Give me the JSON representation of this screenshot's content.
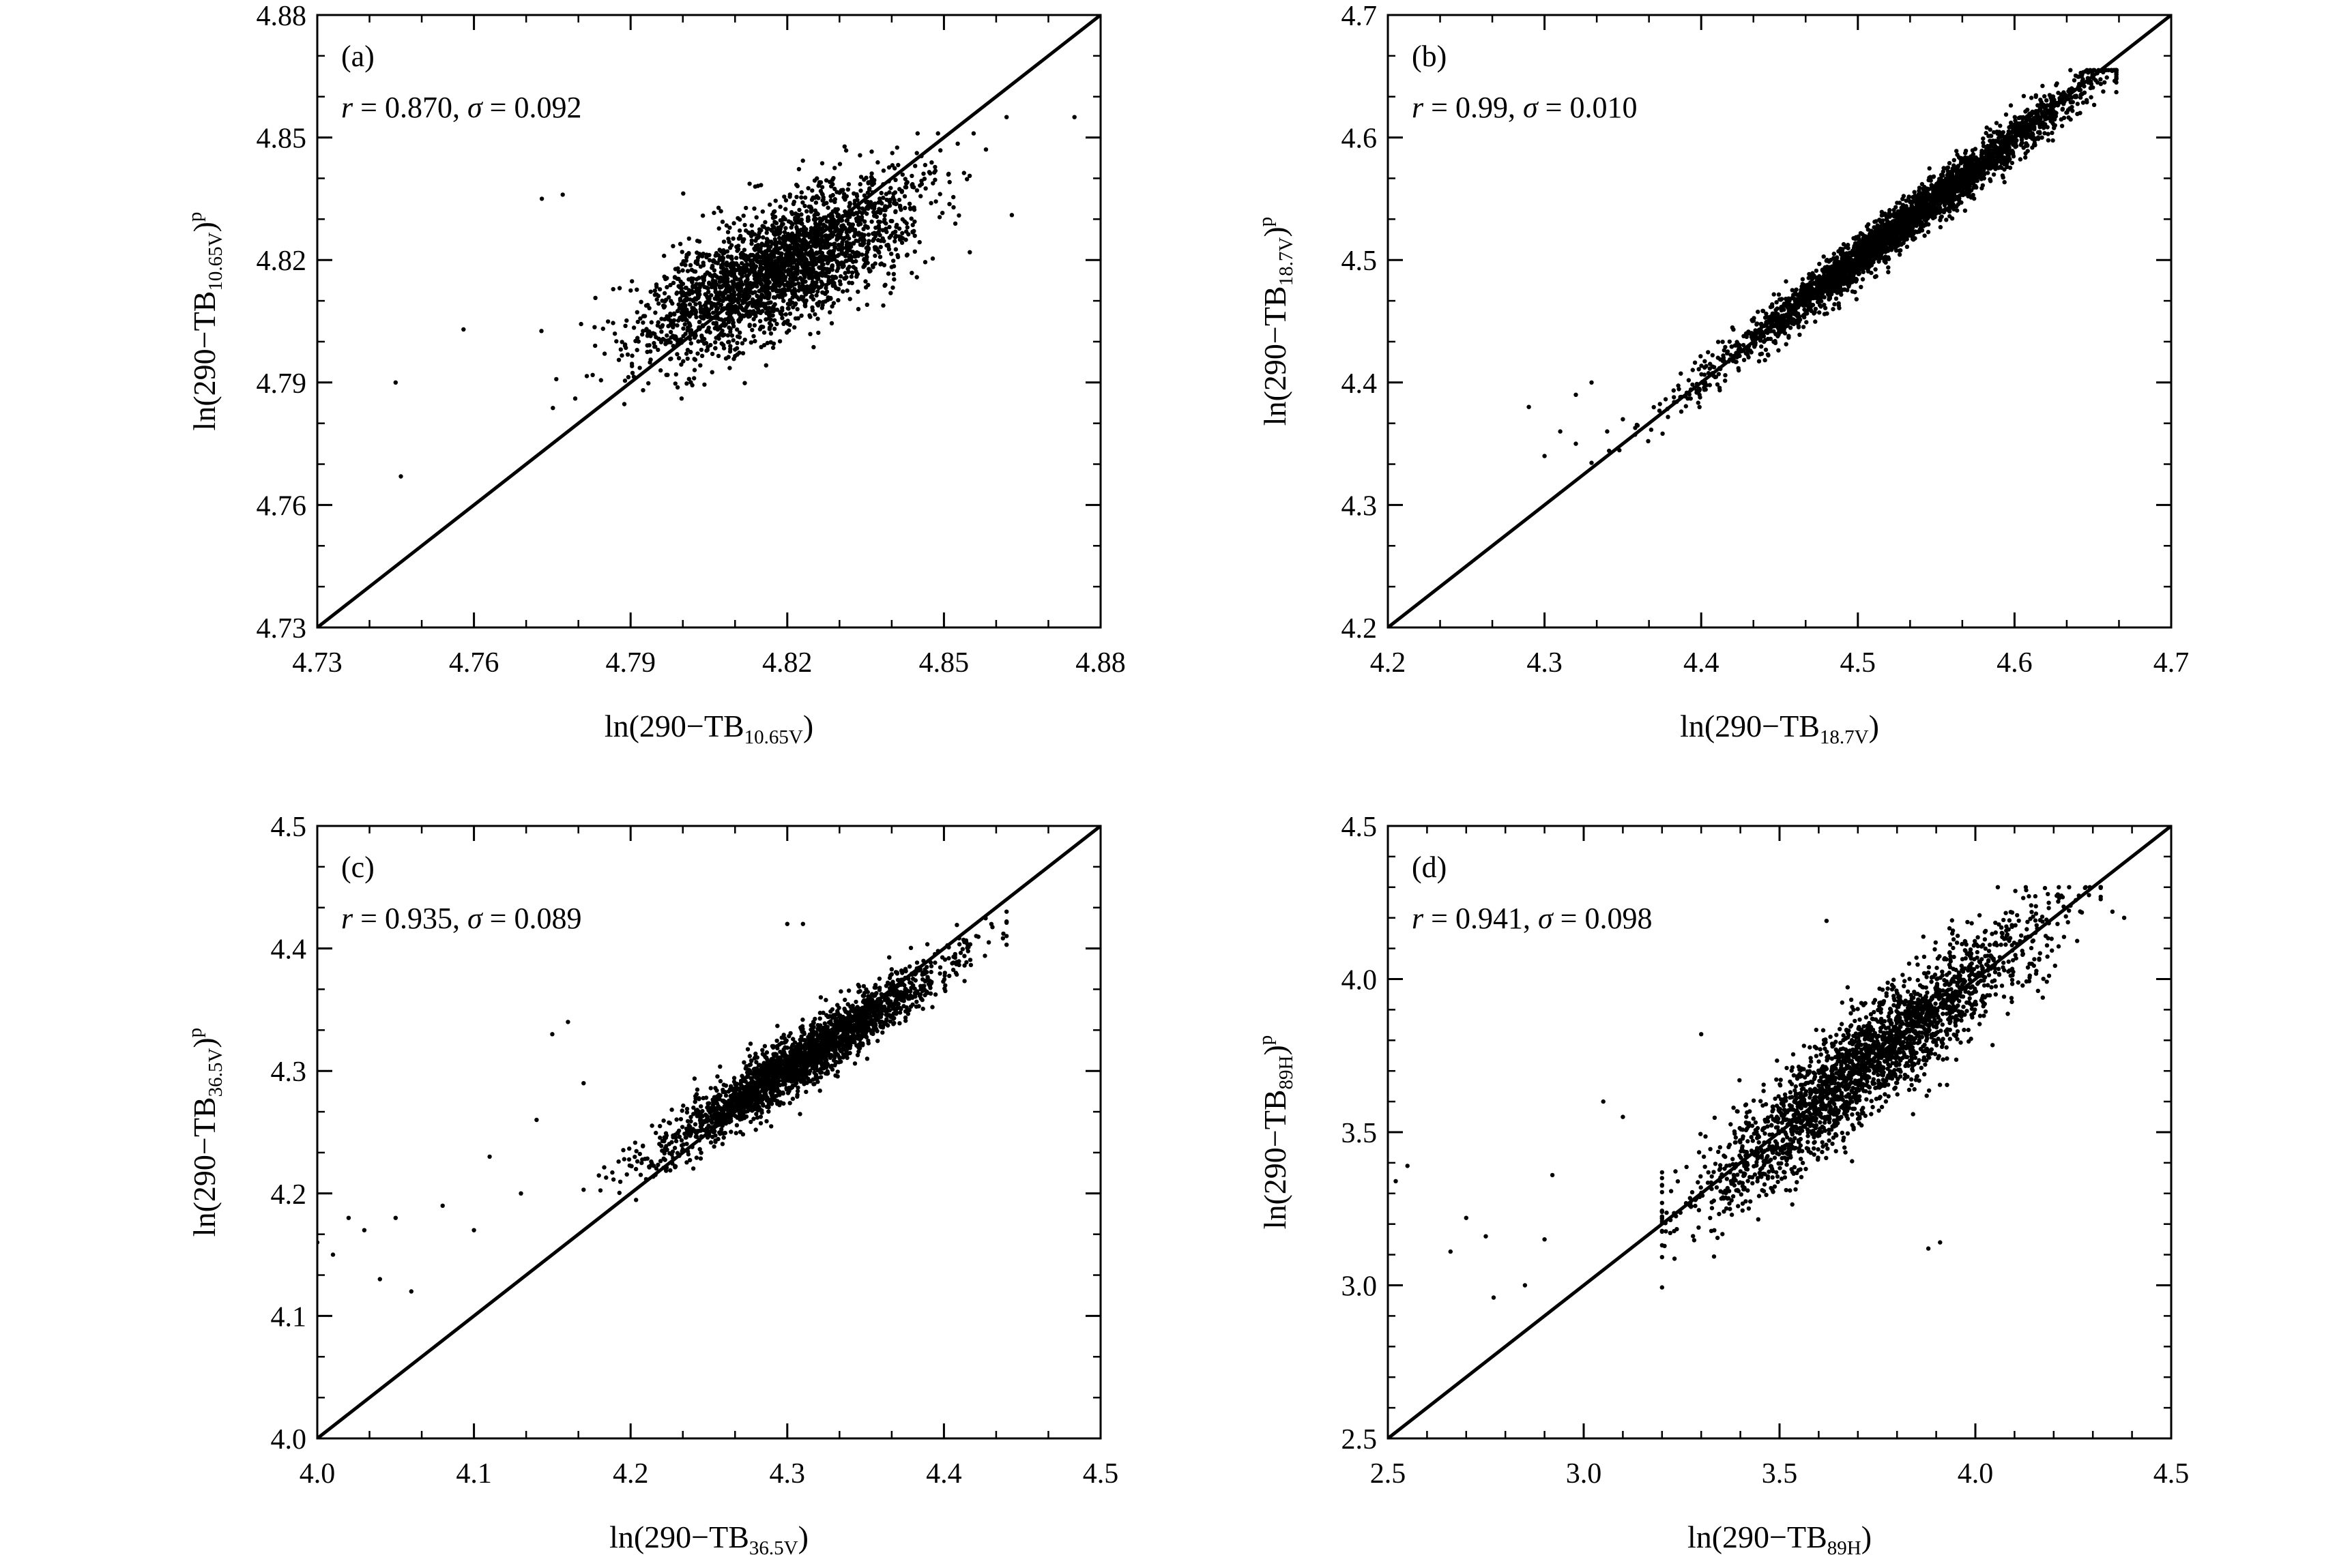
{
  "chart_data": [
    {
      "type": "scatter",
      "panel_label": "(a)",
      "stats": {
        "r_sym": "r",
        "r_eq": " = 0.870, ",
        "s_sym": "σ",
        "s_eq": " = 0.092"
      },
      "xlabel": {
        "pre": "ln(290−TB",
        "sub": "10.65V",
        "post": ")",
        "sup": ""
      },
      "ylabel": {
        "pre": "ln(290−TB",
        "sub": "10.65V",
        "post": ")",
        "sup": "p"
      },
      "xlim": [
        4.73,
        4.88
      ],
      "ylim": [
        4.73,
        4.88
      ],
      "xticks": [
        "4.73",
        "4.76",
        "4.79",
        "4.82",
        "4.85",
        "4.88"
      ],
      "yticks": [
        "4.73",
        "4.76",
        "4.79",
        "4.82",
        "4.85",
        "4.88"
      ],
      "reference_line": [
        [
          4.73,
          4.73
        ],
        [
          4.88,
          4.88
        ]
      ],
      "points_generator": {
        "n": 2600,
        "x_mean": 4.818,
        "x_sd": 0.013,
        "x_min": 4.746,
        "x_max": 4.876,
        "y_slope": 0.58,
        "y_intercept_offset": 0.0,
        "y_noise": 0.0075,
        "y_center": 4.818,
        "y_min": 4.762,
        "y_max": 4.851,
        "seed": 11
      },
      "outlier_points": [
        [
          4.745,
          4.79
        ],
        [
          4.746,
          4.767
        ],
        [
          4.758,
          4.803
        ],
        [
          4.773,
          4.835
        ],
        [
          4.777,
          4.836
        ],
        [
          4.862,
          4.855
        ],
        [
          4.875,
          4.855
        ],
        [
          4.863,
          4.831
        ]
      ]
    },
    {
      "type": "scatter",
      "panel_label": "(b)",
      "stats": {
        "r_sym": "r",
        "r_eq": " = 0.99, ",
        "s_sym": "σ",
        "s_eq": " = 0.010"
      },
      "xlabel": {
        "pre": "ln(290−TB",
        "sub": "18.7V",
        "post": ")",
        "sup": ""
      },
      "ylabel": {
        "pre": "ln(290−TB",
        "sub": "18.7V",
        "post": ")",
        "sup": "p"
      },
      "xlim": [
        4.2,
        4.7
      ],
      "ylim": [
        4.2,
        4.7
      ],
      "xticks": [
        "4.2",
        "4.3",
        "4.4",
        "4.5",
        "4.6",
        "4.7"
      ],
      "yticks": [
        "4.2",
        "4.3",
        "4.4",
        "4.5",
        "4.6",
        "4.7"
      ],
      "reference_line": [
        [
          4.2,
          4.2
        ],
        [
          4.7,
          4.7
        ]
      ],
      "points_generator": {
        "n": 3200,
        "x_mean": 4.53,
        "x_sd": 0.06,
        "x_min": 4.33,
        "x_max": 4.665,
        "y_slope": 0.96,
        "y_intercept_offset": 0.02,
        "y_noise": 0.009,
        "y_center": 4.53,
        "y_min": 4.33,
        "y_max": 4.655,
        "seed": 23
      },
      "outlier_points": [
        [
          4.29,
          4.38
        ],
        [
          4.3,
          4.34
        ],
        [
          4.31,
          4.36
        ],
        [
          4.32,
          4.39
        ],
        [
          4.33,
          4.4
        ],
        [
          4.34,
          4.36
        ],
        [
          4.35,
          4.37
        ],
        [
          4.32,
          4.35
        ]
      ]
    },
    {
      "type": "scatter",
      "panel_label": "(c)",
      "stats": {
        "r_sym": "r",
        "r_eq": " = 0.935, ",
        "s_sym": "σ",
        "s_eq": " = 0.089"
      },
      "xlabel": {
        "pre": "ln(290−TB",
        "sub": "36.5V",
        "post": ")",
        "sup": ""
      },
      "ylabel": {
        "pre": "ln(290−TB",
        "sub": "36.5V",
        "post": ")",
        "sup": "p"
      },
      "xlim": [
        4.0,
        4.5
      ],
      "ylim": [
        4.0,
        4.5
      ],
      "xticks": [
        "4.0",
        "4.1",
        "4.2",
        "4.3",
        "4.4",
        "4.5"
      ],
      "yticks": [
        "4.0",
        "4.1",
        "4.2",
        "4.3",
        "4.4",
        "4.5"
      ],
      "reference_line": [
        [
          4.0,
          4.0
        ],
        [
          4.5,
          4.5
        ]
      ],
      "points_generator": {
        "n": 2400,
        "x_mean": 4.31,
        "x_sd": 0.045,
        "x_min": 4.17,
        "x_max": 4.44,
        "y_slope": 0.82,
        "y_intercept_offset": 0.005,
        "y_noise": 0.012,
        "y_center": 4.31,
        "y_min": 4.16,
        "y_max": 4.43,
        "seed": 37
      },
      "outlier_points": [
        [
          4.0,
          4.16
        ],
        [
          4.01,
          4.15
        ],
        [
          4.02,
          4.18
        ],
        [
          4.03,
          4.17
        ],
        [
          4.04,
          4.13
        ],
        [
          4.05,
          4.18
        ],
        [
          4.06,
          4.12
        ],
        [
          4.08,
          4.19
        ],
        [
          4.1,
          4.17
        ],
        [
          4.11,
          4.23
        ],
        [
          4.13,
          4.2
        ],
        [
          4.14,
          4.26
        ],
        [
          4.15,
          4.33
        ],
        [
          4.16,
          4.34
        ],
        [
          4.17,
          4.29
        ],
        [
          4.3,
          4.42
        ],
        [
          4.31,
          4.42
        ]
      ]
    },
    {
      "type": "scatter",
      "panel_label": "(d)",
      "stats": {
        "r_sym": "r",
        "r_eq": " = 0.941, ",
        "s_sym": "σ",
        "s_eq": " = 0.098"
      },
      "xlabel": {
        "pre": "ln(290−TB",
        "sub": "89H",
        "post": ")",
        "sup": ""
      },
      "ylabel": {
        "pre": "ln(290−TB",
        "sub": "89H",
        "post": ")",
        "sup": "p"
      },
      "xlim": [
        2.5,
        4.5
      ],
      "ylim": [
        2.5,
        4.5
      ],
      "xticks": [
        "2.5",
        "3.0",
        "3.5",
        "4.0",
        "4.5"
      ],
      "yticks": [
        "2.5",
        "3.0",
        "3.5",
        "4.0",
        "4.5"
      ],
      "reference_line": [
        [
          2.5,
          2.5
        ],
        [
          4.5,
          4.5
        ]
      ],
      "points_generator": {
        "n": 2400,
        "x_mean": 3.72,
        "x_sd": 0.22,
        "x_min": 3.2,
        "x_max": 4.32,
        "y_slope": 1.0,
        "y_intercept_offset": 0.0,
        "y_noise": 0.09,
        "y_center": 3.72,
        "y_min": 2.95,
        "y_max": 4.3,
        "seed": 51
      },
      "outlier_points": [
        [
          2.52,
          3.34
        ],
        [
          2.55,
          3.39
        ],
        [
          2.66,
          3.11
        ],
        [
          2.7,
          3.22
        ],
        [
          2.75,
          3.16
        ],
        [
          2.77,
          2.96
        ],
        [
          2.85,
          3.0
        ],
        [
          2.9,
          3.15
        ],
        [
          2.92,
          3.36
        ],
        [
          3.05,
          3.6
        ],
        [
          3.1,
          3.55
        ],
        [
          3.2,
          3.35
        ],
        [
          3.3,
          3.82
        ],
        [
          3.62,
          4.19
        ],
        [
          3.88,
          3.12
        ],
        [
          3.91,
          3.14
        ],
        [
          4.38,
          4.2
        ],
        [
          4.35,
          4.22
        ]
      ]
    }
  ]
}
